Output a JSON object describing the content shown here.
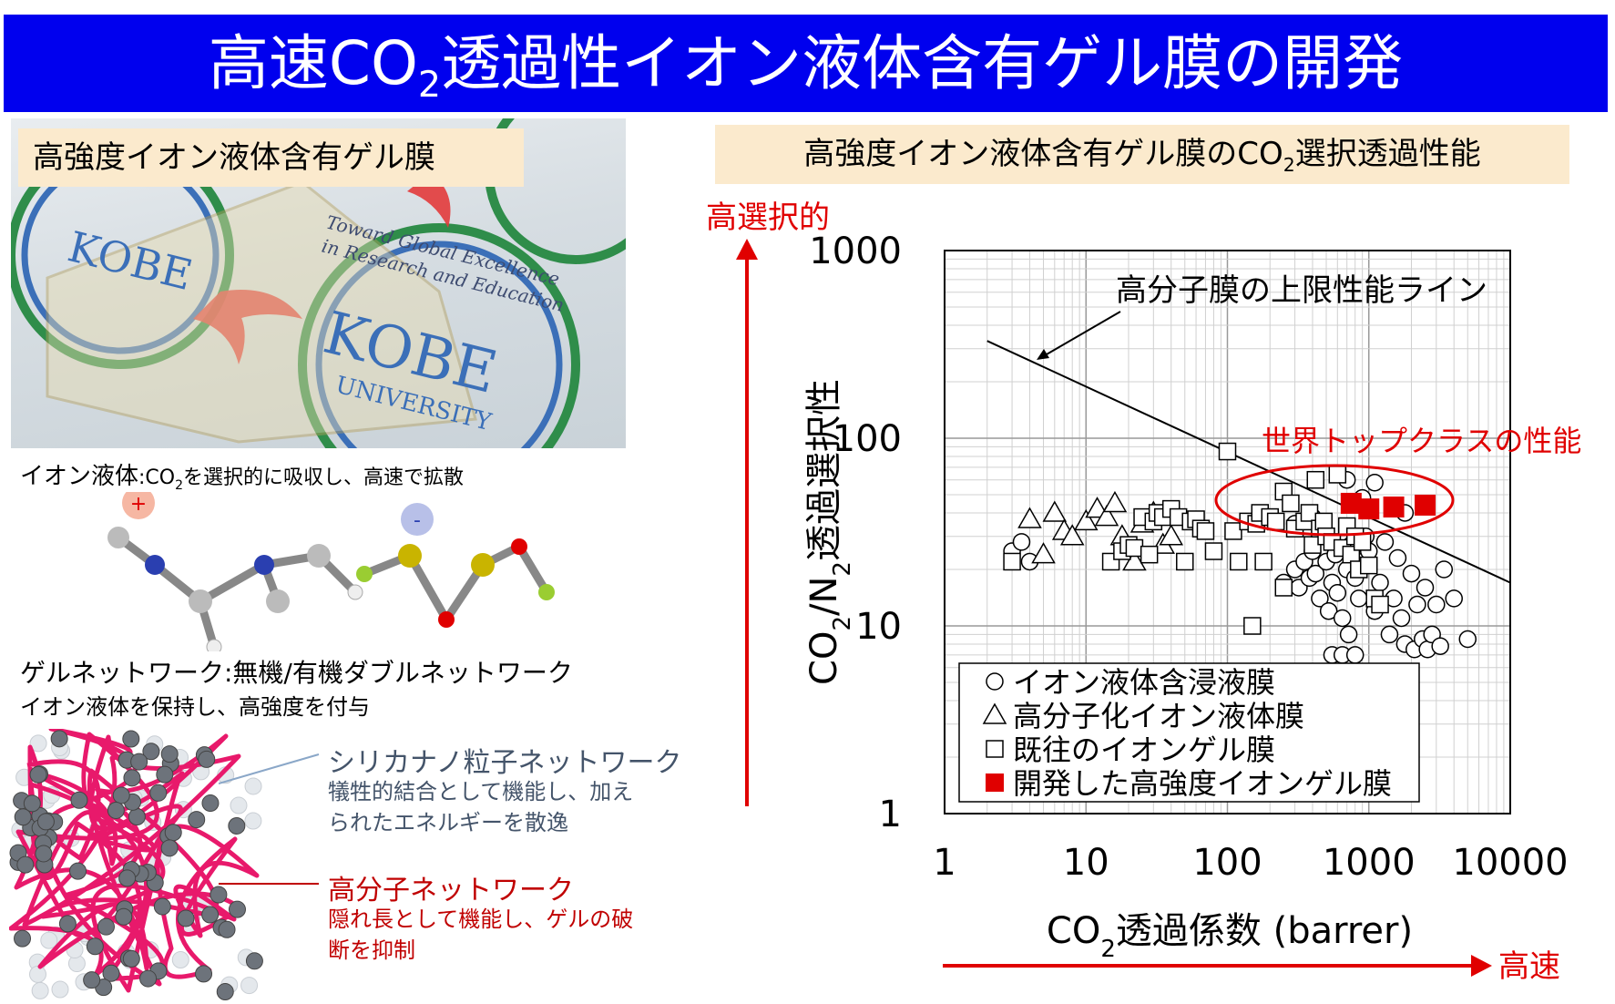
{
  "title": {
    "pre": "高速CO",
    "sub": "2",
    "post": "透過性イオン液体含有ゲル膜の開発"
  },
  "photo": {
    "label": "高強度イオン液体含有ゲル膜",
    "logo_main": "KOBE",
    "logo_sub": "UNIVERSITY",
    "logo_motto_1": "Toward Global Excellence",
    "logo_motto_2": "in Research and Education"
  },
  "ionic_liquid": {
    "label": "イオン液体",
    "desc_pre": ":CO",
    "desc_sub": "2",
    "desc_post": "を選択的に吸収し、高速で拡散",
    "cation_sign": "+",
    "anion_sign": "-"
  },
  "gel_network": {
    "heading": "ゲルネットワーク:無機/有機ダブルネットワーク",
    "desc": "イオン液体を保持し、高強度を付与"
  },
  "silica_note": {
    "heading": "シリカナノ粒子ネットワーク",
    "line1": "犠牲的結合として機能し、加え",
    "line2": "られたエネルギーを散逸"
  },
  "polymer_note": {
    "heading": "高分子ネットワーク",
    "line1": "隠れ長として機能し、ゲルの破",
    "line2": "断を抑制"
  },
  "performance_label": {
    "pre": "高強度イオン液体含有ゲル膜のCO",
    "sub": "2",
    "post": "選択透過性能"
  },
  "colors": {
    "title_bg": "#0000ee",
    "label_bg": "#fbeacd",
    "red": "#e00000",
    "blue_note": "#44546a",
    "dark_red": "#c00000"
  },
  "chart_data": {
    "type": "scatter",
    "x_scale": "log",
    "y_scale": "log",
    "xlim": [
      1,
      10000
    ],
    "ylim": [
      1,
      1000
    ],
    "x_ticks": [
      "1",
      "10",
      "100",
      "1000",
      "10000"
    ],
    "y_ticks": [
      "1",
      "10",
      "100",
      "1000"
    ],
    "xlabel": {
      "pre": "CO",
      "sub": "2",
      "post": "透過係数 (barrer)"
    },
    "ylabel": {
      "pre": "CO",
      "sub1": "2",
      "mid": "/N",
      "sub2": "2",
      "post": "透過選択性"
    },
    "arrow_up_label": "高選択的",
    "arrow_right_label": "高速",
    "grid": true,
    "legend_position": "bottom-left",
    "upper_bound_line": {
      "label": "高分子膜の上限性能ライン",
      "x": [
        2,
        10000
      ],
      "y": [
        330,
        17
      ]
    },
    "highlight_label": "世界トップクラスの性能",
    "series": [
      {
        "name": "イオン液体含浸液膜",
        "marker": "circle",
        "points": [
          [
            3,
            25
          ],
          [
            3.5,
            28
          ],
          [
            4,
            22
          ],
          [
            250,
            17
          ],
          [
            300,
            20
          ],
          [
            320,
            16
          ],
          [
            350,
            22
          ],
          [
            380,
            18
          ],
          [
            400,
            25
          ],
          [
            420,
            19
          ],
          [
            450,
            14
          ],
          [
            480,
            30
          ],
          [
            500,
            22
          ],
          [
            520,
            12
          ],
          [
            550,
            17
          ],
          [
            580,
            24
          ],
          [
            600,
            15
          ],
          [
            650,
            11
          ],
          [
            700,
            20
          ],
          [
            720,
            9
          ],
          [
            750,
            27
          ],
          [
            800,
            18
          ],
          [
            850,
            14
          ],
          [
            900,
            22
          ],
          [
            950,
            30
          ],
          [
            1000,
            25
          ],
          [
            1100,
            12
          ],
          [
            1200,
            17
          ],
          [
            1300,
            28
          ],
          [
            1400,
            9
          ],
          [
            1500,
            14
          ],
          [
            1600,
            23
          ],
          [
            1700,
            11
          ],
          [
            1800,
            8
          ],
          [
            2000,
            19
          ],
          [
            2100,
            7.5
          ],
          [
            2200,
            13
          ],
          [
            2400,
            8.5
          ],
          [
            2500,
            16
          ],
          [
            2600,
            7.5
          ],
          [
            2800,
            9
          ],
          [
            3000,
            13
          ],
          [
            3200,
            7.8
          ],
          [
            3400,
            20
          ],
          [
            4000,
            14
          ],
          [
            5000,
            8.5
          ],
          [
            550,
            7
          ],
          [
            650,
            7
          ],
          [
            800,
            7
          ],
          [
            1100,
            58
          ],
          [
            1800,
            40
          ],
          [
            700,
            60
          ],
          [
            300,
            35
          ],
          [
            400,
            38
          ],
          [
            900,
            48
          ]
        ]
      },
      {
        "name": "高分子化イオン液体膜",
        "marker": "triangle",
        "points": [
          [
            4,
            37
          ],
          [
            5,
            24
          ],
          [
            6,
            40
          ],
          [
            7,
            32
          ],
          [
            8,
            30
          ],
          [
            10,
            36
          ],
          [
            12,
            42
          ],
          [
            14,
            38
          ],
          [
            16,
            45
          ],
          [
            18,
            30
          ],
          [
            22,
            22
          ],
          [
            25,
            35
          ],
          [
            30,
            40
          ],
          [
            35,
            27
          ],
          [
            40,
            30
          ]
        ]
      },
      {
        "name": "既往のイオンゲル膜",
        "marker": "square",
        "points": [
          [
            3,
            22
          ],
          [
            15,
            22
          ],
          [
            18,
            25
          ],
          [
            20,
            27
          ],
          [
            22,
            26
          ],
          [
            25,
            38
          ],
          [
            28,
            24
          ],
          [
            30,
            36
          ],
          [
            32,
            40
          ],
          [
            35,
            38
          ],
          [
            40,
            42
          ],
          [
            45,
            38
          ],
          [
            50,
            22
          ],
          [
            55,
            36
          ],
          [
            60,
            37
          ],
          [
            65,
            33
          ],
          [
            70,
            32
          ],
          [
            80,
            25
          ],
          [
            100,
            85
          ],
          [
            110,
            32
          ],
          [
            120,
            22
          ],
          [
            140,
            36
          ],
          [
            160,
            35
          ],
          [
            170,
            40
          ],
          [
            180,
            22
          ],
          [
            200,
            38
          ],
          [
            220,
            36
          ],
          [
            250,
            52
          ],
          [
            280,
            45
          ],
          [
            300,
            33
          ],
          [
            350,
            36
          ],
          [
            380,
            40
          ],
          [
            400,
            27
          ],
          [
            420,
            60
          ],
          [
            450,
            33
          ],
          [
            480,
            36
          ],
          [
            500,
            30
          ],
          [
            550,
            28
          ],
          [
            600,
            64
          ],
          [
            650,
            26
          ],
          [
            700,
            34
          ],
          [
            750,
            24
          ],
          [
            800,
            30
          ],
          [
            850,
            20
          ],
          [
            900,
            28
          ],
          [
            1000,
            21
          ],
          [
            1100,
            14
          ],
          [
            250,
            16
          ],
          [
            1200,
            13
          ],
          [
            150,
            10
          ]
        ]
      },
      {
        "name": "開発した高強度イオンゲル膜",
        "marker": "filled-square",
        "points": [
          [
            750,
            45
          ],
          [
            1000,
            42
          ],
          [
            1500,
            43
          ],
          [
            2500,
            44
          ]
        ]
      }
    ]
  }
}
